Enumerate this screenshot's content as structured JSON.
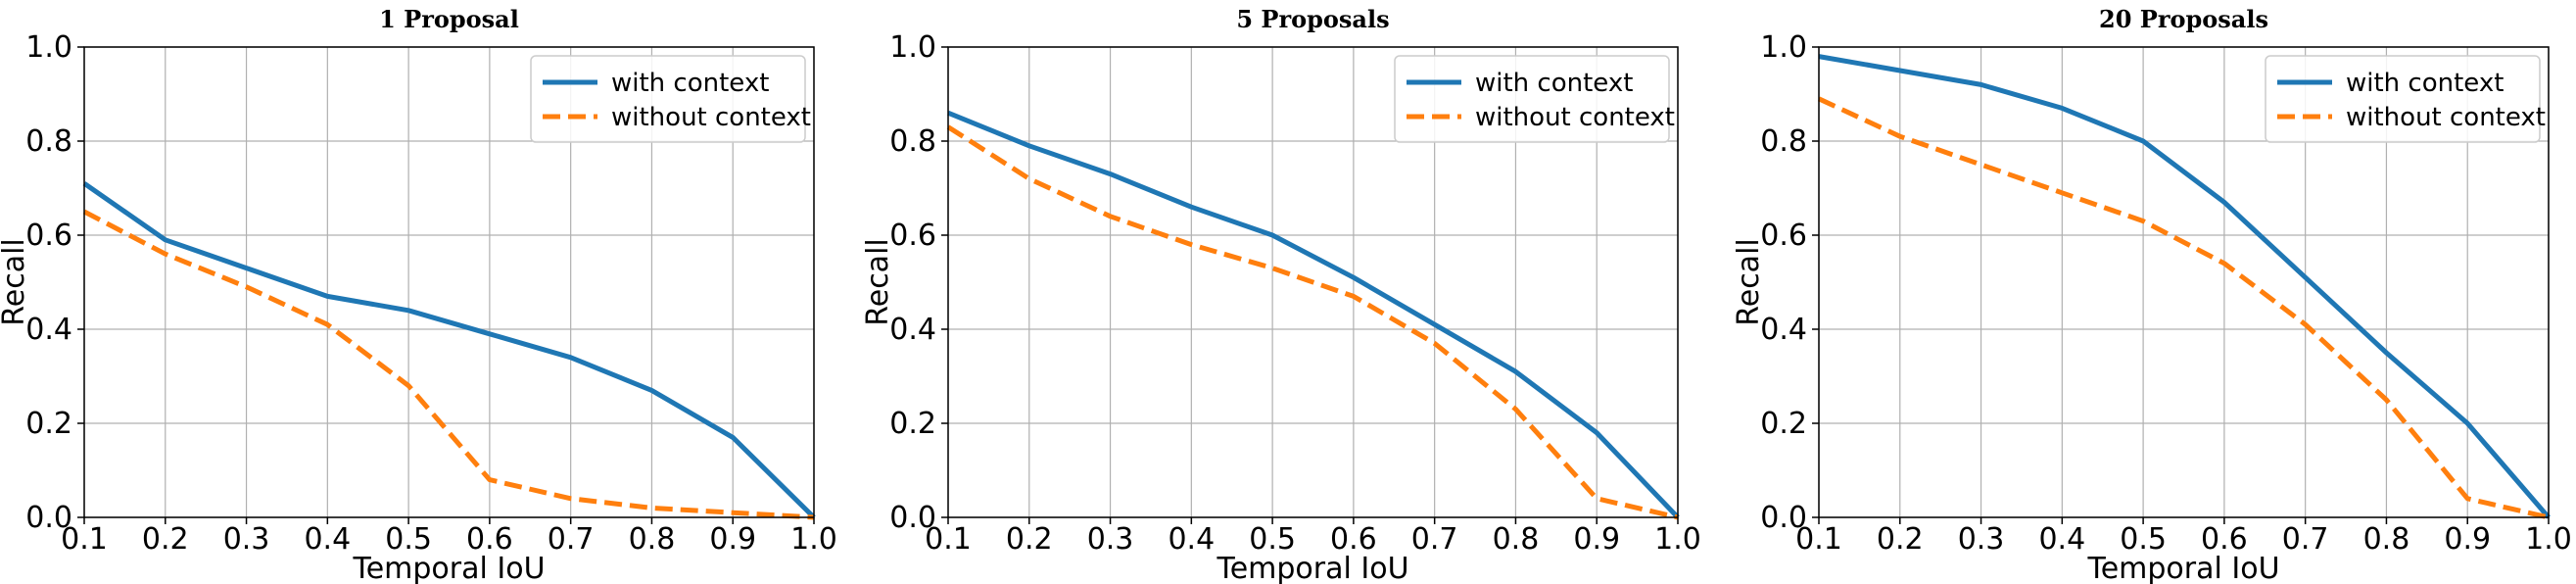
{
  "chart_data": [
    {
      "type": "line",
      "title": "1 Proposal",
      "xlabel": "Temporal IoU",
      "ylabel": "Recall",
      "xlim": [
        0.1,
        1.0
      ],
      "ylim": [
        0.0,
        1.0
      ],
      "xticks": [
        "0.1",
        "0.2",
        "0.3",
        "0.4",
        "0.5",
        "0.6",
        "0.7",
        "0.8",
        "0.9",
        "1.0"
      ],
      "yticks": [
        "0.0",
        "0.2",
        "0.4",
        "0.6",
        "0.8",
        "1.0"
      ],
      "grid": true,
      "legend_position": "top-right",
      "x": [
        0.1,
        0.2,
        0.3,
        0.4,
        0.5,
        0.6,
        0.7,
        0.8,
        0.9,
        1.0
      ],
      "series": [
        {
          "name": "with context",
          "color": "#1f77b4",
          "style": "solid",
          "values": [
            0.71,
            0.59,
            0.53,
            0.47,
            0.44,
            0.39,
            0.34,
            0.27,
            0.17,
            0.0
          ]
        },
        {
          "name": "without context",
          "color": "#ff7f0e",
          "style": "dashed",
          "values": [
            0.65,
            0.56,
            0.49,
            0.41,
            0.28,
            0.08,
            0.04,
            0.02,
            0.01,
            0.0
          ]
        }
      ]
    },
    {
      "type": "line",
      "title": "5 Proposals",
      "xlabel": "Temporal IoU",
      "ylabel": "Recall",
      "xlim": [
        0.1,
        1.0
      ],
      "ylim": [
        0.0,
        1.0
      ],
      "xticks": [
        "0.1",
        "0.2",
        "0.3",
        "0.4",
        "0.5",
        "0.6",
        "0.7",
        "0.8",
        "0.9",
        "1.0"
      ],
      "yticks": [
        "0.0",
        "0.2",
        "0.4",
        "0.6",
        "0.8",
        "1.0"
      ],
      "grid": true,
      "legend_position": "top-right",
      "x": [
        0.1,
        0.2,
        0.3,
        0.4,
        0.5,
        0.6,
        0.7,
        0.8,
        0.9,
        1.0
      ],
      "series": [
        {
          "name": "with context",
          "color": "#1f77b4",
          "style": "solid",
          "values": [
            0.86,
            0.79,
            0.73,
            0.66,
            0.6,
            0.51,
            0.41,
            0.31,
            0.18,
            0.0
          ]
        },
        {
          "name": "without context",
          "color": "#ff7f0e",
          "style": "dashed",
          "values": [
            0.83,
            0.72,
            0.64,
            0.58,
            0.53,
            0.47,
            0.37,
            0.23,
            0.04,
            0.0
          ]
        }
      ]
    },
    {
      "type": "line",
      "title": "20 Proposals",
      "xlabel": "Temporal IoU",
      "ylabel": "Recall",
      "xlim": [
        0.1,
        1.0
      ],
      "ylim": [
        0.0,
        1.0
      ],
      "xticks": [
        "0.1",
        "0.2",
        "0.3",
        "0.4",
        "0.5",
        "0.6",
        "0.7",
        "0.8",
        "0.9",
        "1.0"
      ],
      "yticks": [
        "0.0",
        "0.2",
        "0.4",
        "0.6",
        "0.8",
        "1.0"
      ],
      "grid": true,
      "legend_position": "top-right",
      "x": [
        0.1,
        0.2,
        0.3,
        0.4,
        0.5,
        0.6,
        0.7,
        0.8,
        0.9,
        1.0
      ],
      "series": [
        {
          "name": "with context",
          "color": "#1f77b4",
          "style": "solid",
          "values": [
            0.98,
            0.95,
            0.92,
            0.87,
            0.8,
            0.67,
            0.51,
            0.35,
            0.2,
            0.0
          ]
        },
        {
          "name": "without context",
          "color": "#ff7f0e",
          "style": "dashed",
          "values": [
            0.89,
            0.81,
            0.75,
            0.69,
            0.63,
            0.54,
            0.41,
            0.25,
            0.04,
            0.0
          ]
        }
      ]
    }
  ]
}
